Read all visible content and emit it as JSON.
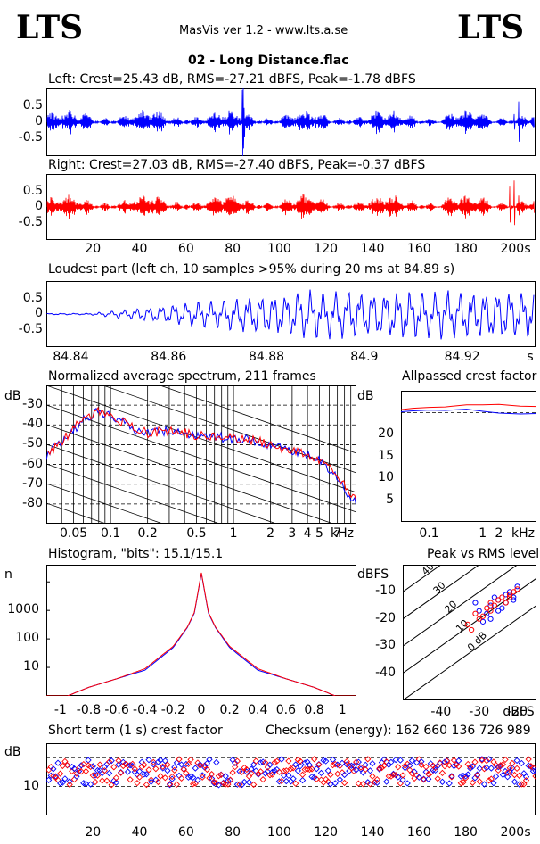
{
  "header": {
    "logo_left": "LTS",
    "logo_right": "LTS",
    "app": "MasVis ver 1.2 - www.lts.a.se",
    "file": "02 - Long Distance.flac"
  },
  "colors": {
    "left": "#0000ff",
    "right": "#ff0000",
    "black": "#000000"
  },
  "panels": {
    "left_wave": {
      "title": "Left: Crest=25.43 dB, RMS=-27.21 dBFS, Peak=-1.78 dBFS",
      "yticks": [
        "0.5",
        "0",
        "-0.5"
      ]
    },
    "right_wave": {
      "title": "Right: Crest=27.03 dB, RMS=-27.40 dBFS, Peak=-0.37 dBFS",
      "yticks": [
        "0.5",
        "0",
        "-0.5"
      ],
      "xticks": [
        "20",
        "40",
        "60",
        "80",
        "100",
        "120",
        "140",
        "160",
        "180",
        "200",
        "s"
      ]
    },
    "loudest": {
      "title": "Loudest part (left  ch, 10 samples >95% during 20 ms at 84.89 s)",
      "yticks": [
        "0.5",
        "0",
        "-0.5"
      ],
      "xticks": [
        "84.84",
        "84.86",
        "84.88",
        "84.9",
        "84.92",
        "s"
      ]
    },
    "spectrum": {
      "title": "Normalized average spectrum, 211 frames",
      "ylabel": "dB",
      "yticks": [
        "-30",
        "-40",
        "-50",
        "-60",
        "-70",
        "-80"
      ],
      "xticks": [
        "0.05",
        "0.1",
        "0.2",
        "0.5",
        "1",
        "2",
        "3",
        "4",
        "5",
        "7",
        "kHz"
      ]
    },
    "allpass": {
      "title": "Allpassed crest factor",
      "ylabel": "dB",
      "yticks": [
        "20",
        "15",
        "10",
        "5"
      ],
      "xticks": [
        "0.1",
        "1",
        "2",
        "kHz"
      ]
    },
    "histogram": {
      "title": "Histogram, \"bits\": 15.1/15.1",
      "ylabel": "n",
      "yticks": [
        "1000",
        "100",
        "10"
      ],
      "xticks": [
        "-1",
        "-0.8",
        "-0.6",
        "-0.4",
        "-0.2",
        "0",
        "0.2",
        "0.4",
        "0.6",
        "0.8",
        "1"
      ]
    },
    "peakrms": {
      "title": "Peak vs RMS level",
      "ylabel": "dBFS",
      "yticks": [
        "-10",
        "-20",
        "-30",
        "-40"
      ],
      "xticks": [
        "-40",
        "-30",
        "-20",
        "dBFS"
      ],
      "diag_labels": [
        "40",
        "30",
        "20",
        "10",
        "0 dB"
      ]
    },
    "crest": {
      "title": "Short term (1 s) crest factor",
      "checksum": "Checksum (energy):   162 660 136 726 989",
      "ylabel": "dB",
      "yticks": [
        "10"
      ],
      "xticks": [
        "20",
        "40",
        "60",
        "80",
        "100",
        "120",
        "140",
        "160",
        "180",
        "200",
        "s"
      ]
    }
  },
  "chart_data": [
    {
      "type": "line",
      "title": "Left: Crest=25.43 dB, RMS=-27.21 dBFS, Peak=-1.78 dBFS",
      "xlim": [
        0,
        210
      ],
      "ylim": [
        -1,
        1
      ],
      "series": [
        {
          "name": "Left",
          "peak": -1.78,
          "rms": -27.21,
          "crest": 25.43
        }
      ]
    },
    {
      "type": "line",
      "title": "Right: Crest=27.03 dB, RMS=-27.40 dBFS, Peak=-0.37 dBFS",
      "xlim": [
        0,
        210
      ],
      "ylim": [
        -1,
        1
      ],
      "series": [
        {
          "name": "Right",
          "peak": -0.37,
          "rms": -27.4,
          "crest": 27.03
        }
      ]
    },
    {
      "type": "line",
      "title": "Loudest part (left  ch, 10 samples >95% during 20 ms at 84.89 s)",
      "xlim": [
        84.835,
        84.935
      ],
      "ylim": [
        -1,
        1
      ]
    },
    {
      "type": "line",
      "title": "Normalized average spectrum, 211 frames",
      "xscale": "log",
      "xlim": [
        0.03,
        10
      ],
      "ylim": [
        -90,
        -20
      ],
      "x": [
        0.03,
        0.04,
        0.05,
        0.06,
        0.07,
        0.08,
        0.1,
        0.12,
        0.15,
        0.2,
        0.3,
        0.5,
        0.7,
        1,
        1.5,
        2,
        3,
        4,
        5,
        6,
        7,
        8,
        10
      ],
      "series": [
        {
          "name": "Left",
          "values": [
            -56,
            -48,
            -42,
            -38,
            -35,
            -33,
            -35,
            -38,
            -42,
            -44,
            -43,
            -45,
            -46,
            -47,
            -48,
            -50,
            -53,
            -55,
            -58,
            -63,
            -67,
            -72,
            -80
          ]
        },
        {
          "name": "Right",
          "values": [
            -55,
            -48,
            -42,
            -37,
            -35,
            -33,
            -35,
            -38,
            -41,
            -44,
            -43,
            -45,
            -46,
            -47,
            -48,
            -50,
            -53,
            -55,
            -58,
            -62,
            -66,
            -71,
            -79
          ]
        }
      ]
    },
    {
      "type": "line",
      "title": "Allpassed crest factor",
      "xscale": "log",
      "xlim": [
        0.03,
        10
      ],
      "ylim": [
        0,
        30
      ],
      "x": [
        0.03,
        0.05,
        0.1,
        0.2,
        0.5,
        1,
        2,
        5,
        10
      ],
      "series": [
        {
          "name": "Left",
          "values": [
            25.2,
            25.4,
            25.6,
            25.5,
            25.8,
            25.3,
            24.9,
            24.7,
            24.8
          ]
        },
        {
          "name": "Right",
          "values": [
            25.7,
            26.0,
            26.2,
            26.3,
            26.8,
            26.8,
            26.9,
            26.5,
            26.4
          ]
        }
      ]
    },
    {
      "type": "line",
      "title": "Histogram, \"bits\": 15.1/15.1",
      "yscale": "log",
      "xlim": [
        -1.1,
        1.1
      ],
      "ylim": [
        1,
        30000
      ],
      "x": [
        -0.95,
        -0.8,
        -0.6,
        -0.4,
        -0.2,
        -0.1,
        -0.05,
        0,
        0.05,
        0.1,
        0.2,
        0.4,
        0.6,
        0.8,
        0.95
      ],
      "series": [
        {
          "name": "Left",
          "values": [
            1,
            2,
            4,
            8,
            50,
            250,
            800,
            20000,
            800,
            250,
            50,
            8,
            4,
            2,
            1
          ]
        },
        {
          "name": "Right",
          "values": [
            1,
            2,
            4,
            9,
            55,
            260,
            850,
            21000,
            850,
            260,
            55,
            9,
            4,
            2,
            1
          ]
        }
      ]
    },
    {
      "type": "scatter",
      "title": "Peak vs RMS level",
      "xlim": [
        -50,
        -15
      ],
      "ylim": [
        -50,
        0
      ],
      "series": [
        {
          "name": "Left",
          "x": [
            -31,
            -30,
            -28,
            -27,
            -26,
            -25,
            -24,
            -23,
            -22,
            -21,
            -29,
            -27,
            -25,
            -23,
            -21,
            -20
          ],
          "y": [
            -14,
            -17,
            -18,
            -15,
            -12,
            -13,
            -16,
            -11,
            -10,
            -12,
            -21,
            -20,
            -17,
            -14,
            -13,
            -8
          ]
        },
        {
          "name": "Right",
          "x": [
            -33,
            -31,
            -30,
            -28,
            -27,
            -26,
            -24,
            -23,
            -22,
            -20,
            -32,
            -29,
            -27,
            -25,
            -22,
            -21
          ],
          "y": [
            -22,
            -18,
            -20,
            -16,
            -14,
            -15,
            -12,
            -14,
            -11,
            -9,
            -24,
            -19,
            -17,
            -13,
            -12,
            -10
          ]
        }
      ]
    },
    {
      "type": "scatter",
      "title": "Short term (1 s) crest factor",
      "xlim": [
        0,
        210
      ],
      "ylim": [
        0,
        25
      ],
      "series": [
        {
          "name": "Left"
        },
        {
          "name": "Right"
        }
      ]
    }
  ]
}
